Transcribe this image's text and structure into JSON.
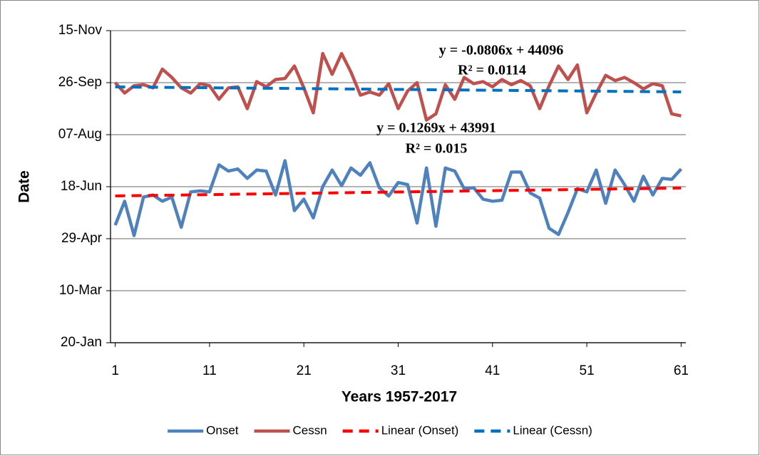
{
  "chart_data": {
    "type": "line",
    "x_label": "Years 1957-2017",
    "y_label": "Date",
    "x": [
      1,
      2,
      3,
      4,
      5,
      6,
      7,
      8,
      9,
      10,
      11,
      12,
      13,
      14,
      15,
      16,
      17,
      18,
      19,
      20,
      21,
      22,
      23,
      24,
      25,
      26,
      27,
      28,
      29,
      30,
      31,
      32,
      33,
      34,
      35,
      36,
      37,
      38,
      39,
      40,
      41,
      42,
      43,
      44,
      45,
      46,
      47,
      48,
      49,
      50,
      51,
      52,
      53,
      54,
      55,
      56,
      57,
      58,
      59,
      60,
      61
    ],
    "xlim": [
      0.5,
      61.5
    ],
    "xticks": [
      1,
      11,
      21,
      31,
      41,
      51,
      61
    ],
    "ylim": [
      43850,
      44150
    ],
    "yticks": [
      {
        "value": 43850,
        "label": "20-Jan"
      },
      {
        "value": 43900,
        "label": "10-Mar"
      },
      {
        "value": 43950,
        "label": "29-Apr"
      },
      {
        "value": 44000,
        "label": "18-Jun"
      },
      {
        "value": 44050,
        "label": "07-Aug"
      },
      {
        "value": 44100,
        "label": "26-Sep"
      },
      {
        "value": 44150,
        "label": "15-Nov"
      }
    ],
    "grid": true,
    "legend": "bottom",
    "series": [
      {
        "name": "Onset",
        "color": "#4f81bd",
        "values": [
          43963,
          43986,
          43953,
          43990,
          43992,
          43986,
          43990,
          43961,
          43995,
          43996,
          43995,
          44021,
          44015,
          44017,
          44008,
          44016,
          44015,
          43992,
          44025,
          43977,
          43988,
          43970,
          44000,
          44016,
          44001,
          44018,
          44011,
          44023,
          43999,
          43991,
          44004,
          44002,
          43965,
          44018,
          43962,
          44018,
          44015,
          43998,
          43999,
          43988,
          43986,
          43987,
          44014,
          44014,
          43994,
          43989,
          43960,
          43954,
          43975,
          43998,
          43995,
          44016,
          43984,
          44016,
          44002,
          43986,
          44010,
          43992,
          44008,
          44007,
          44017
        ]
      },
      {
        "name": "Cessn",
        "color": "#c0504d",
        "values": [
          44100,
          44090,
          44097,
          44098,
          44095,
          44113,
          44105,
          44095,
          44090,
          44099,
          44097,
          44084,
          44095,
          44096,
          44075,
          44101,
          44096,
          44103,
          44104,
          44116,
          44095,
          44071,
          44128,
          44108,
          44128,
          44110,
          44088,
          44091,
          44088,
          44099,
          44075,
          44092,
          44100,
          44064,
          44070,
          44098,
          44084,
          44105,
          44099,
          44101,
          44096,
          44103,
          44098,
          44102,
          44097,
          44075,
          44097,
          44116,
          44103,
          44117,
          44071,
          44090,
          44107,
          44102,
          44105,
          44100,
          44094,
          44099,
          44097,
          44070,
          44068
        ]
      },
      {
        "name": "Linear (Onset)",
        "color": "#ff0000",
        "dashed": true,
        "x": [
          1,
          61
        ],
        "values": [
          43991.1,
          43998.7
        ]
      },
      {
        "name": "Linear (Cessn)",
        "color": "#0070c0",
        "dashed": true,
        "x": [
          1,
          61
        ],
        "values": [
          44095.9,
          44091.1
        ]
      }
    ],
    "annotations": [
      "y = -0.0806x + 44096",
      "R² = 0.0114",
      "y = 0.1269x + 43991",
      "R² = 0.015"
    ]
  }
}
